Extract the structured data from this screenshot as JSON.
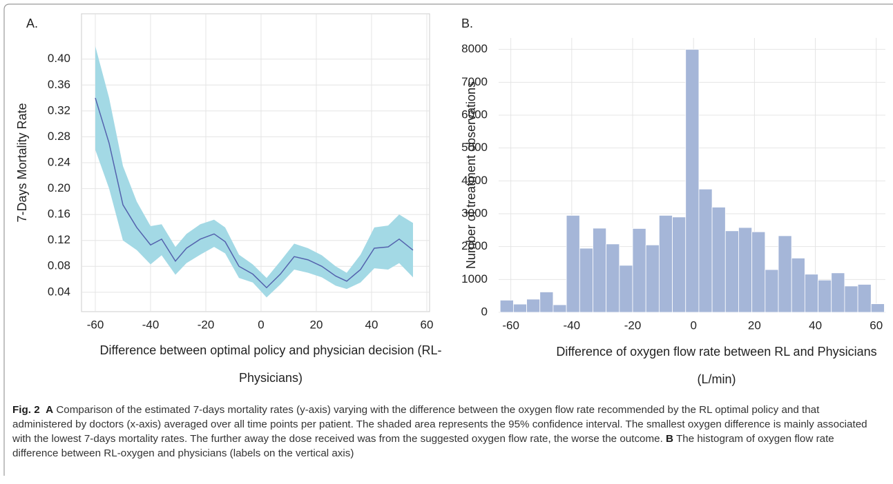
{
  "chart_data": [
    {
      "type": "line",
      "panel_label": "A.",
      "ylabel": "7-Days Mortality Rate",
      "xlabel": "Difference between optimal policy and physician decision (RL-Physicians)",
      "x": [
        -60,
        -55,
        -50,
        -45,
        -40,
        -36,
        -31,
        -27,
        -22,
        -17,
        -13,
        -8,
        -3,
        2,
        7,
        12,
        17,
        22,
        27,
        31,
        36,
        41,
        46,
        50,
        55
      ],
      "series": [
        {
          "color": "#5462ad",
          "band_color": "#a3d9e5",
          "values": [
            0.34,
            0.27,
            0.175,
            0.14,
            0.113,
            0.122,
            0.088,
            0.108,
            0.122,
            0.13,
            0.118,
            0.08,
            0.068,
            0.047,
            0.068,
            0.095,
            0.09,
            0.08,
            0.065,
            0.057,
            0.075,
            0.108,
            0.11,
            0.122,
            0.105
          ],
          "lower": [
            0.26,
            0.2,
            0.12,
            0.105,
            0.083,
            0.097,
            0.067,
            0.085,
            0.098,
            0.11,
            0.1,
            0.062,
            0.055,
            0.032,
            0.052,
            0.075,
            0.07,
            0.063,
            0.05,
            0.045,
            0.055,
            0.077,
            0.075,
            0.085,
            0.063
          ],
          "upper": [
            0.42,
            0.34,
            0.235,
            0.18,
            0.142,
            0.145,
            0.11,
            0.13,
            0.145,
            0.152,
            0.14,
            0.098,
            0.083,
            0.062,
            0.088,
            0.115,
            0.108,
            0.097,
            0.08,
            0.07,
            0.098,
            0.14,
            0.143,
            0.16,
            0.147
          ]
        }
      ],
      "xlim": [
        -65,
        61
      ],
      "ylim": [
        0.01,
        0.47
      ],
      "xticks": [
        -60,
        -40,
        -20,
        0,
        20,
        40,
        60
      ],
      "yticks": [
        0.04,
        0.08,
        0.12,
        0.16,
        {
          "value": 0.2,
          "label": "0.20"
        },
        0.24,
        0.28,
        0.32,
        0.36,
        {
          "value": 0.4,
          "label": "0.40"
        }
      ],
      "grid": true
    },
    {
      "type": "histogram",
      "panel_label": "B.",
      "ylabel": "Number of treatment observations",
      "xlabel": "Difference of oxygen flow rate between RL and Physicians (L/min)",
      "bins": [
        -63.5,
        -59.15,
        -54.8,
        -50.45,
        -46.1,
        -41.75,
        -37.4,
        -33.05,
        -28.7,
        -24.35,
        -20,
        -15.65,
        -11.3,
        -6.95,
        -2.6,
        1.75,
        6.1,
        10.45,
        14.8,
        19.15,
        23.5,
        27.85,
        32.2,
        36.55,
        40.9,
        45.25,
        49.6,
        53.95,
        58.3,
        62.65
      ],
      "values": [
        370,
        250,
        400,
        620,
        230,
        2950,
        1950,
        2560,
        2080,
        1430,
        2550,
        2050,
        2950,
        2900,
        8000,
        3750,
        3200,
        2480,
        2580,
        2450,
        1300,
        2330,
        1650,
        1160,
        980,
        1200,
        800,
        850,
        260
      ],
      "color": "#a5b6d8",
      "xlim": [
        -64,
        63
      ],
      "ylim": [
        0,
        8350
      ],
      "xticks": [
        -60,
        -40,
        -20,
        0,
        20,
        40,
        60
      ],
      "yticks": [
        0,
        1000,
        2000,
        3000,
        4000,
        5000,
        6000,
        7000,
        8000
      ],
      "grid": true
    }
  ],
  "caption": {
    "label": "Fig. 2",
    "a_label": "A",
    "a_text": "Comparison of the estimated 7-days mortality rates (y-axis) varying with the difference between the oxygen flow rate recommended by the RL optimal policy and that administered by doctors (x-axis) averaged over all time points per patient. The shaded area represents the 95% confidence interval. The smallest oxygen difference is mainly associated with the lowest 7-days mortality rates. The further away the dose received was from the suggested oxygen flow rate, the worse the outcome.",
    "b_label": "B",
    "b_text": "The histogram of oxygen flow rate difference between RL-oxygen and physicians (labels on the vertical axis)"
  }
}
